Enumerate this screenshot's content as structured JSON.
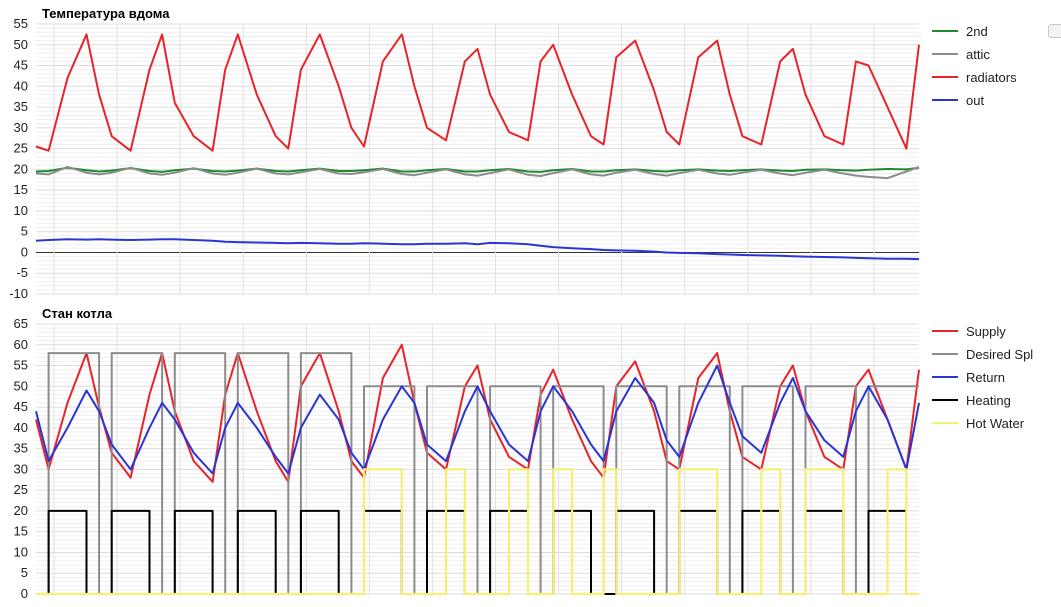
{
  "chart_data": [
    {
      "type": "line",
      "title": "Температура вдома",
      "ylim": [
        -10,
        55
      ],
      "yticks": [
        -10,
        -5,
        0,
        5,
        10,
        15,
        20,
        25,
        30,
        35,
        40,
        45,
        50,
        55
      ],
      "grid": true,
      "legend_position": "right",
      "x": [
        0,
        0.2,
        0.5,
        0.8,
        1.0,
        1.2,
        1.5,
        1.8,
        2.0,
        2.2,
        2.5,
        2.8,
        3.0,
        3.2,
        3.5,
        3.8,
        4.0,
        4.2,
        4.5,
        4.8,
        5.0,
        5.2,
        5.5,
        5.8,
        6.0,
        6.2,
        6.5,
        6.8,
        7.0,
        7.2,
        7.5,
        7.8,
        8.0,
        8.2,
        8.5,
        8.8,
        9.0,
        9.2,
        9.5,
        9.8,
        10.0,
        10.2,
        10.5,
        10.8,
        11.0,
        11.2,
        11.5,
        11.8,
        12.0,
        12.2,
        12.5,
        12.8,
        13.0,
        13.2,
        13.5,
        13.8,
        14.0
      ],
      "series": [
        {
          "name": "2nd",
          "color": "#1e8a2e",
          "values": [
            19.5,
            19.6,
            20.4,
            19.8,
            19.5,
            19.7,
            20.3,
            19.6,
            19.4,
            19.8,
            20.2,
            19.6,
            19.5,
            19.7,
            20.2,
            19.6,
            19.5,
            19.8,
            20.2,
            19.6,
            19.6,
            19.8,
            20.2,
            19.5,
            19.5,
            19.8,
            20.1,
            19.5,
            19.5,
            19.8,
            20.1,
            19.5,
            19.4,
            19.8,
            20.1,
            19.5,
            19.5,
            19.8,
            20.0,
            19.6,
            19.5,
            19.8,
            20.0,
            19.7,
            19.6,
            19.8,
            20.0,
            19.7,
            19.6,
            19.9,
            20.0,
            19.8,
            19.7,
            19.9,
            20.1,
            20.0,
            20.4
          ]
        },
        {
          "name": "attic",
          "color": "#8c8c8c",
          "values": [
            19.0,
            18.8,
            20.6,
            19.2,
            18.8,
            19.2,
            20.4,
            19.0,
            18.7,
            19.2,
            20.3,
            19.0,
            18.7,
            19.2,
            20.2,
            19.0,
            18.8,
            19.3,
            20.1,
            19.0,
            18.9,
            19.3,
            20.1,
            18.9,
            18.6,
            19.2,
            20.0,
            18.8,
            18.5,
            19.1,
            20.0,
            18.7,
            18.4,
            19.1,
            20.0,
            18.8,
            18.5,
            19.2,
            19.9,
            18.9,
            18.5,
            19.1,
            19.9,
            19.0,
            18.7,
            19.2,
            19.9,
            19.0,
            18.6,
            19.2,
            19.9,
            19.0,
            18.5,
            18.2,
            17.9,
            19.5,
            20.6
          ]
        },
        {
          "name": "radiators",
          "color": "#e8232a",
          "values": [
            25.5,
            24.5,
            42,
            52.5,
            38,
            28,
            24.5,
            44,
            52.5,
            36,
            28,
            24.5,
            44,
            52.5,
            38,
            28,
            25,
            44,
            52.5,
            40,
            30,
            25.5,
            46,
            52.5,
            40,
            30,
            27,
            46,
            49,
            38,
            29,
            27,
            46,
            50,
            38,
            28,
            26,
            47,
            51,
            39,
            29,
            26,
            47,
            51,
            38,
            28,
            26,
            46,
            49,
            38,
            28,
            26,
            46,
            45,
            35,
            25,
            50
          ]
        },
        {
          "name": "out",
          "color": "#2a35d6",
          "values": [
            2.8,
            3.0,
            3.2,
            3.1,
            3.2,
            3.1,
            3.0,
            3.1,
            3.2,
            3.2,
            3.0,
            2.8,
            2.6,
            2.5,
            2.4,
            2.3,
            2.2,
            2.3,
            2.2,
            2.1,
            2.1,
            2.2,
            2.1,
            2.0,
            2.0,
            2.1,
            2.1,
            2.2,
            2.0,
            2.3,
            2.2,
            2.0,
            1.6,
            1.3,
            1.0,
            0.8,
            0.6,
            0.5,
            0.4,
            0.2,
            0.0,
            -0.1,
            -0.2,
            -0.4,
            -0.5,
            -0.6,
            -0.7,
            -0.8,
            -0.9,
            -1.0,
            -1.1,
            -1.2,
            -1.3,
            -1.4,
            -1.5,
            -1.5,
            -1.6
          ]
        }
      ]
    },
    {
      "type": "line",
      "title": "Стан котла",
      "ylim": [
        0,
        65
      ],
      "yticks": [
        0,
        5,
        10,
        15,
        20,
        25,
        30,
        35,
        40,
        45,
        50,
        55,
        60,
        65
      ],
      "grid": true,
      "legend_position": "right",
      "x": [
        0,
        0.2,
        0.5,
        0.8,
        1.0,
        1.2,
        1.5,
        1.8,
        2.0,
        2.2,
        2.5,
        2.8,
        3.0,
        3.2,
        3.5,
        3.8,
        4.0,
        4.2,
        4.5,
        4.8,
        5.0,
        5.2,
        5.5,
        5.8,
        6.0,
        6.2,
        6.5,
        6.8,
        7.0,
        7.2,
        7.5,
        7.8,
        8.0,
        8.2,
        8.5,
        8.8,
        9.0,
        9.2,
        9.5,
        9.8,
        10.0,
        10.2,
        10.5,
        10.8,
        11.0,
        11.2,
        11.5,
        11.8,
        12.0,
        12.2,
        12.5,
        12.8,
        13.0,
        13.2,
        13.5,
        13.8,
        14.0
      ],
      "series": [
        {
          "name": "Supply",
          "color": "#e8232a",
          "values": [
            42,
            30,
            46,
            58,
            45,
            34,
            28,
            48,
            58,
            44,
            32,
            27,
            48,
            58,
            44,
            32,
            27,
            50,
            58,
            44,
            32,
            28,
            52,
            60,
            46,
            34,
            30,
            50,
            55,
            42,
            33,
            30,
            48,
            54,
            42,
            32,
            28,
            50,
            56,
            44,
            32,
            30,
            52,
            58,
            44,
            33,
            30,
            50,
            55,
            44,
            33,
            30,
            50,
            54,
            42,
            30,
            54
          ]
        },
        {
          "name": "Desired Spl",
          "color": "#8c8c8c",
          "values": [
            0,
            58,
            58,
            58,
            0,
            58,
            58,
            58,
            0,
            58,
            58,
            58,
            0,
            58,
            58,
            58,
            0,
            58,
            58,
            58,
            0,
            50,
            50,
            50,
            0,
            50,
            50,
            50,
            0,
            50,
            50,
            50,
            0,
            50,
            50,
            50,
            0,
            50,
            50,
            50,
            0,
            50,
            50,
            50,
            0,
            50,
            50,
            50,
            0,
            50,
            50,
            50,
            0,
            50,
            50,
            50,
            50
          ]
        },
        {
          "name": "Return",
          "color": "#2a35d6",
          "values": [
            44,
            32,
            40,
            49,
            44,
            36,
            30,
            40,
            46,
            42,
            34,
            29,
            40,
            46,
            40,
            33,
            29,
            40,
            48,
            42,
            34,
            30,
            42,
            50,
            46,
            36,
            32,
            44,
            50,
            44,
            36,
            32,
            44,
            50,
            44,
            36,
            32,
            44,
            52,
            46,
            37,
            33,
            46,
            55,
            46,
            38,
            34,
            46,
            52,
            44,
            37,
            33,
            44,
            50,
            42,
            30,
            46
          ]
        },
        {
          "name": "Heating",
          "color": "#000000",
          "values": [
            0,
            20,
            20,
            0,
            0,
            20,
            20,
            0,
            0,
            20,
            20,
            0,
            0,
            20,
            20,
            0,
            0,
            20,
            20,
            0,
            0,
            20,
            20,
            0,
            0,
            20,
            20,
            0,
            0,
            20,
            20,
            0,
            0,
            20,
            20,
            0,
            0,
            20,
            20,
            0,
            0,
            20,
            20,
            0,
            0,
            20,
            20,
            0,
            0,
            20,
            20,
            0,
            0,
            20,
            20,
            0,
            0
          ]
        },
        {
          "name": "Hot Water",
          "color": "#f5f071",
          "values": [
            0,
            0,
            0,
            0,
            0,
            0,
            0,
            0,
            0,
            0,
            0,
            0,
            0,
            0,
            0,
            0,
            0,
            0,
            0,
            0,
            0,
            30,
            30,
            0,
            0,
            0,
            30,
            0,
            0,
            0,
            30,
            0,
            0,
            30,
            0,
            0,
            30,
            0,
            0,
            0,
            0,
            30,
            30,
            0,
            0,
            0,
            30,
            0,
            0,
            30,
            30,
            0,
            0,
            0,
            30,
            0,
            0
          ]
        }
      ]
    }
  ],
  "legends": [
    [
      "2nd",
      "attic",
      "radiators",
      "out"
    ],
    [
      "Supply",
      "Desired Spl",
      "Return",
      "Heating",
      "Hot Water"
    ]
  ]
}
